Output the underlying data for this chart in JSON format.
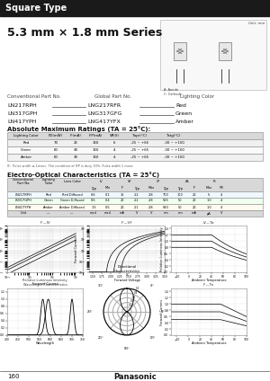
{
  "title_bar_text": "Square Type",
  "title_bar_color": "#1a1a1a",
  "title_bar_text_color": "#ffffff",
  "series_title": "5.3 mm × 1.8 mm Series",
  "parts": [
    {
      "conv": "LN217RPH",
      "global": "LNG217RFR",
      "color": "Red"
    },
    {
      "conv": "LN317GPH",
      "global": "LNG317GFG",
      "color": "Green"
    },
    {
      "conv": "LN417YPH",
      "global": "LNG417YFX",
      "color": "Amber"
    }
  ],
  "abs_max_title": "Absolute Maximum Ratings (TA = 25°C):",
  "abs_max_headers": [
    "Lighting Color",
    "PD(mW)",
    "IF(mA)",
    "IFP(mA)",
    "VR(V)",
    "Topr(°C)",
    "Tstg(°C)"
  ],
  "abs_max_rows": [
    [
      "Red",
      "70",
      "25",
      "150",
      "6",
      "-25 ~ +65",
      "-30 ~ +100"
    ],
    [
      "Green",
      "60",
      "30",
      "150",
      "4",
      "-25 ~ +65",
      "-30 ~ +100"
    ],
    [
      "Amber",
      "60",
      "30",
      "150",
      "4",
      "-25 ~ +65",
      "-30 ~ +100"
    ]
  ],
  "eo_title": "Electro-Optical Characteristics (TA = 25°C)",
  "eo_headers1": [
    "Conventional\nPart No.",
    "Lighting\nColor",
    "Lens Color",
    "IV",
    "VF",
    "λP",
    "Δλ",
    "IR"
  ],
  "eo_headers2": [
    "",
    "",
    "",
    "Typ",
    "Min",
    "IF",
    "Typ",
    "Max",
    "Typ",
    "Typ",
    "IF",
    "Max",
    "VR"
  ],
  "eo_rows": [
    [
      "LN217RPH",
      "Red",
      "Red Diffused",
      "0.6",
      "0.1",
      "15",
      "2.2",
      "2.8",
      "700",
      "100",
      "20",
      "5",
      "4"
    ],
    [
      "LN317GPH",
      "Green",
      "Green Diffused",
      "0.6",
      "0.4",
      "20",
      "2.2",
      "2.8",
      "565",
      "50",
      "20",
      "1.0",
      "4"
    ],
    [
      "LN417YPH",
      "Amber",
      "Amber Diffused",
      "1.5",
      "0.5",
      "20",
      "2.1",
      "2.8",
      "590",
      "50",
      "20",
      "1.0",
      "4"
    ],
    [
      "Unit",
      "—",
      "—",
      "mcd",
      "mcd",
      "mA",
      "V",
      "V",
      "nm",
      "nm",
      "mA",
      "μA",
      "V"
    ]
  ],
  "page_number": "160",
  "brand": "Panasonic",
  "bg": "#ffffff"
}
